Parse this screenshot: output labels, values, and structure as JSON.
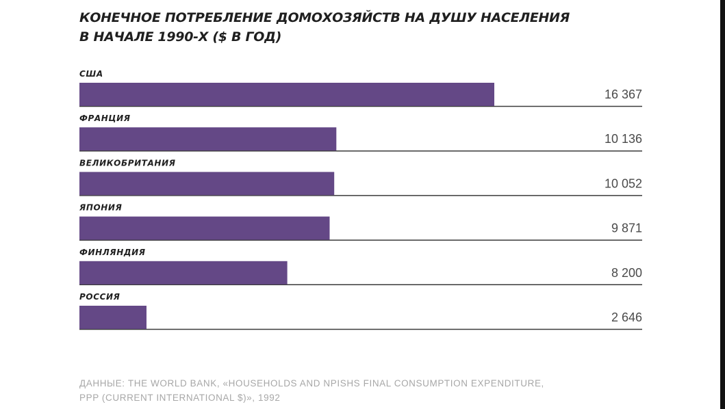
{
  "chart_data": {
    "type": "bar",
    "orientation": "horizontal",
    "title": "КОНЕЧНОЕ ПОТРЕБЛЕНИЕ ДОМОХОЗЯЙСТВ НА ДУШУ НАСЕЛЕНИЯ",
    "subtitle": "В НАЧАЛЕ 1990-Х ($ В ГОД)",
    "categories": [
      "США",
      "ФРАНЦИЯ",
      "ВЕЛИКОБРИТАНИЯ",
      "ЯПОНИЯ",
      "ФИНЛЯНДИЯ",
      "РОССИЯ"
    ],
    "values": [
      16367,
      10136,
      10052,
      9871,
      8200,
      2646
    ],
    "value_labels": [
      "16 367",
      "10 136",
      "10 052",
      "9 871",
      "8 200",
      "2 646"
    ],
    "xlim": [
      0,
      22200
    ],
    "bar_color": "#644886",
    "baseline_color": "#3a3a3a",
    "grid": false,
    "legend": "none"
  },
  "source": {
    "line1": "ДАННЫЕ: THE WORLD BANK, «HOUSEHOLDS AND NPISHS FINAL CONSUMPTION EXPENDITURE,",
    "line2": "PPP (CURRENT INTERNATIONAL $)», 1992"
  },
  "colors": {
    "background": "#ffffff",
    "frame": "#121212",
    "source_text": "#a7a7a7"
  }
}
